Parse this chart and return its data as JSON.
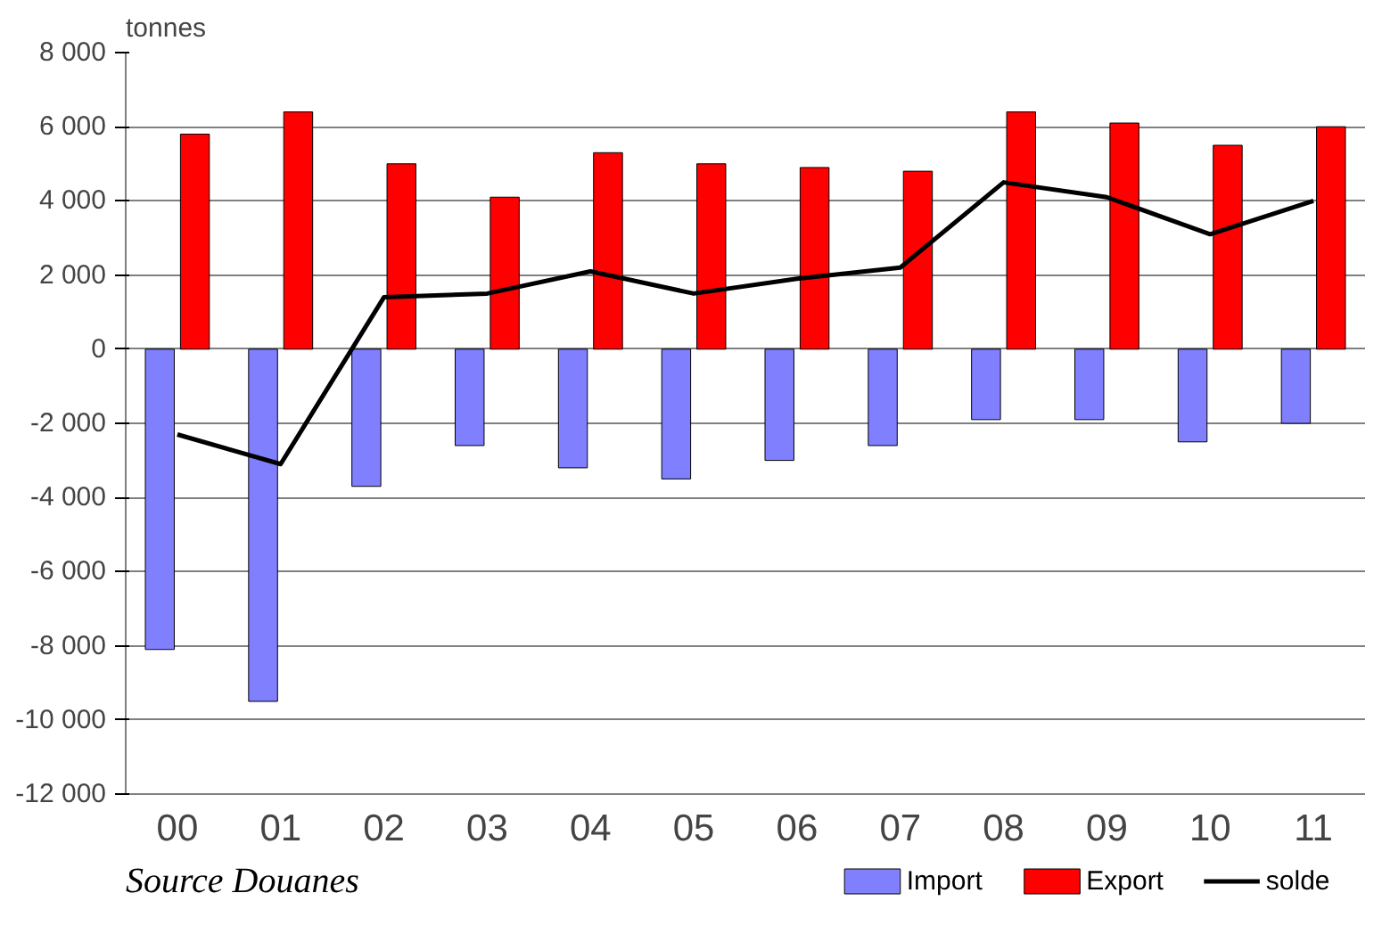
{
  "chart_data": {
    "type": "bar",
    "ylabel": "tonnes",
    "categories": [
      "00",
      "01",
      "02",
      "03",
      "04",
      "05",
      "06",
      "07",
      "08",
      "09",
      "10",
      "11"
    ],
    "series": [
      {
        "name": "Import",
        "color": "#8080ff",
        "values": [
          -8100,
          -9500,
          -3700,
          -2600,
          -3200,
          -3500,
          -3000,
          -2600,
          -1900,
          -1900,
          -2500,
          -2000
        ]
      },
      {
        "name": "Export",
        "color": "#ff0000",
        "values": [
          5800,
          6400,
          5000,
          4100,
          5300,
          5000,
          4900,
          4800,
          6400,
          6100,
          5500,
          6000
        ]
      },
      {
        "name": "solde",
        "type": "line",
        "color": "#000000",
        "values": [
          -2300,
          -3100,
          1400,
          1500,
          2100,
          1500,
          1900,
          2200,
          4500,
          4100,
          3100,
          4000
        ]
      }
    ],
    "ylim": [
      -12000,
      8000
    ],
    "yticks": [
      {
        "value": -12000,
        "label": "-12 000"
      },
      {
        "value": -10000,
        "label": "-10 000"
      },
      {
        "value": -8000,
        "label": "-8 000"
      },
      {
        "value": -6000,
        "label": "-6 000"
      },
      {
        "value": -4000,
        "label": "-4 000"
      },
      {
        "value": -2000,
        "label": "-2 000"
      },
      0,
      {
        "value": 2000,
        "label": "2 000"
      },
      {
        "value": 4000,
        "label": "4 000"
      },
      {
        "value": 6000,
        "label": "6 000"
      },
      {
        "value": 8000,
        "label": "8 000"
      }
    ],
    "grid": "y",
    "legend": "bottom right",
    "annotations": [
      "Source Douanes"
    ]
  }
}
